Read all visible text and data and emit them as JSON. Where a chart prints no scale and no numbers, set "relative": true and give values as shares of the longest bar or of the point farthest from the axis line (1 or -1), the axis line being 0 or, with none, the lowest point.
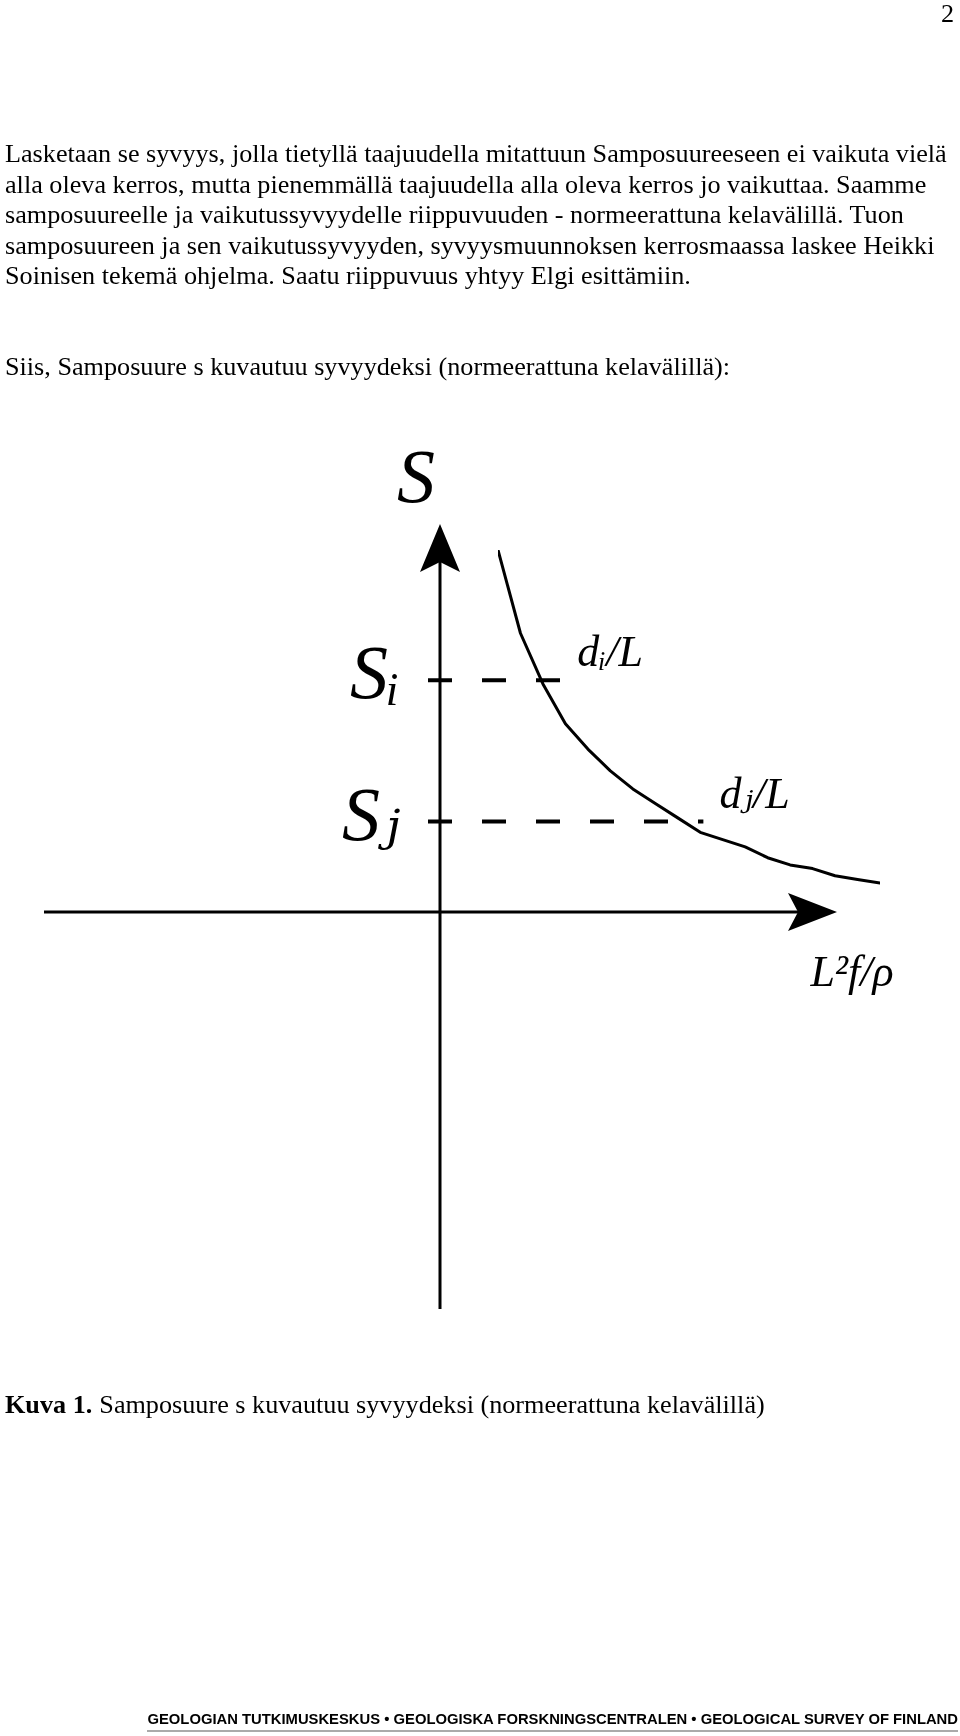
{
  "chart_data": {
    "type": "line",
    "relative": true,
    "ylabel": "S",
    "xlabel": "L²f/ρ",
    "categories": [
      null,
      null,
      null,
      null,
      null,
      null,
      null,
      null,
      null,
      null,
      null,
      null,
      null,
      null,
      null,
      null,
      null,
      null
    ],
    "values": [
      1,
      0.77,
      0.63,
      0.52,
      0.45,
      0.39,
      0.34,
      0.3,
      0.26,
      0.22,
      0.2,
      0.18,
      0.15,
      0.13,
      0.12,
      0.1,
      0.09,
      0.08
    ],
    "color": "#000000",
    "ref_lines": [
      {
        "axis": "y",
        "value": 0.64,
        "label": "Sᵢ",
        "color": "#000000",
        "line_style": "dashed"
      },
      {
        "axis": "y",
        "value": 0.25,
        "label": "Sⱼ",
        "color": "#000000",
        "line_style": "dashed"
      }
    ],
    "annotations": [
      "2",
      "Lasketaan se syvyys, jolla tietyllä taajuudella mitattuun Samposuureeseen ei vaikuta vielä alla oleva kerros, mutta pienemmällä taajuudella alla oleva kerros jo vaikuttaa. Saamme samposuureelle ja vaikutussyvyydelle riippuvuuden - normeerattuna kelavälillä. Tuon samposuureen ja sen vaikutussyvyyden, syvyysmuunnoksen kerrosmaassa laskee Heikki Soinisen tekemä ohjelma. Saatu riippuvuus yhtyy Elgi esittämiin.",
      "Siis, Samposuure s kuvautuu syvyydeksi (normeerattuna kelavälillä):",
      "Kuva 1.",
      "Samposuure s kuvautuu syvyydeksi (normeerattuna kelavälillä)",
      "GEOLOGIAN TUTKIMUSKESKUS • GEOLOGISKA FORSKNINGSCENTRALEN • GEOLOGICAL SURVEY OF FINLAND",
      "dᵢ/L",
      "dⱼ/L"
    ]
  }
}
